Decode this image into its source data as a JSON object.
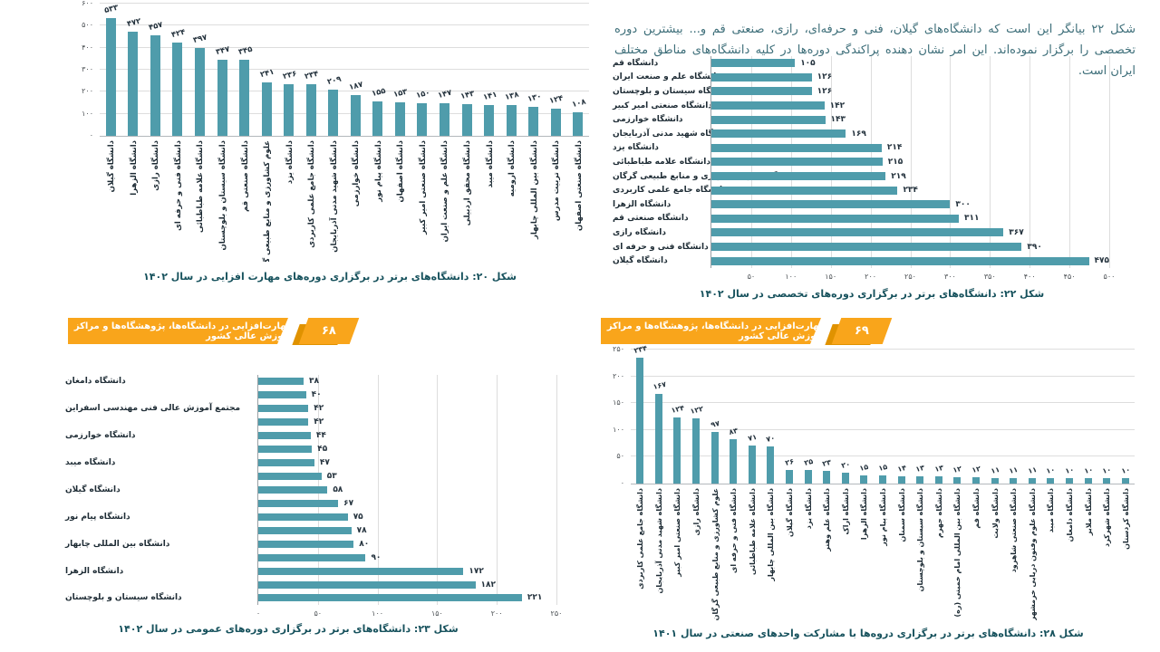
{
  "banner": {
    "title": "مهارت‌افزایی در دانشگاه‌ها، پژوهشگاه‌ها و مراکز آموزش عالی کشور",
    "left_page_number": "۶۸",
    "right_page_number": "۶۹"
  },
  "intro_paragraph": "شکل ۲۲ بیانگر این است که دانشگاه‌های گیلان، فنی و حرفه‌ای، رازی، صنعتی قم و... بیشترین دوره تخصصی را برگزار نموده‌اند. این امر نشان دهنده پراکندگی دوره‌ها در کلیه دانشگاه‌های مناطق مختلف ایران است.",
  "colors": {
    "bar_teal": "#4f9cab",
    "banner_orange": "#f9a51b",
    "banner_shadow": "#e09200",
    "caption_teal": "#17525d",
    "body_text_teal": "#3d6e79"
  },
  "chart_data": [
    {
      "id": "fig20",
      "type": "bar",
      "orientation": "vertical",
      "title": "شکل ۲۰: دانشگاه‌های برتر در برگزاری دوره‌های مهارت افزایی در سال ۱۴۰۲",
      "categories": [
        "دانشگاه گیلان",
        "دانشگاه الزهرا",
        "دانشگاه رازی",
        "دانشگاه فنی و حرفه ای",
        "دانشگاه علامه طباطبائی",
        "دانشگاه سیستان و بلوچستان",
        "دانشگاه صنعتی قم",
        "علوم کشاورزی و منابع طبیعی گرگان",
        "دانشگاه یزد",
        "دانشگاه جامع علمی کاربردی",
        "دانشگاه شهید مدنی آذربایجان",
        "دانشگاه خوارزمی",
        "دانشگاه پیام نور",
        "دانشگاه اصفهان",
        "دانشگاه صنعتی امیر کبیر",
        "دانشگاه علم و صنعت ایران",
        "دانشگاه محقق اردبیلی",
        "دانشگاه میبد",
        "دانشگاه ارومیه",
        "دانشگاه بین المللی چابهار",
        "دانشگاه تربیت مدرس",
        "دانشگاه صنعتی اصفهان"
      ],
      "values": [
        533,
        472,
        457,
        424,
        397,
        347,
        345,
        241,
        236,
        234,
        209,
        187,
        155,
        153,
        150,
        147,
        143,
        141,
        138,
        130,
        124,
        108
      ],
      "ylim": [
        0,
        600
      ],
      "yticks": [
        0,
        100,
        200,
        300,
        400,
        500,
        600
      ],
      "grid": true,
      "value_labels": true
    },
    {
      "id": "fig22",
      "type": "bar",
      "orientation": "horizontal",
      "title": "شکل ۲۲: دانشگاه‌های برتر در برگزاری دوره‌های تخصصی در سال ۱۴۰۲",
      "categories": [
        "دانشگاه قم",
        "دانشگاه علم و صنعت ایران",
        "دانشگاه سیستان و بلوچستان",
        "دانشگاه صنعتی امیر کبیر",
        "دانشگاه خوارزمی",
        "دانشگاه شهید مدنی آذربایجان",
        "دانشگاه یزد",
        "دانشگاه علامه طباطبائی",
        "دانشگاه علوم کشاورزی و منابع طبیعی گرگان",
        "دانشگاه جامع علمی کاربردی",
        "دانشگاه الزهرا",
        "دانشگاه صنعتی قم",
        "دانشگاه رازی",
        "دانشگاه فنی و حرفه ای",
        "دانشگاه گیلان"
      ],
      "values": [
        105,
        126,
        126,
        142,
        143,
        169,
        214,
        215,
        219,
        234,
        300,
        311,
        367,
        390,
        475
      ],
      "xlim": [
        0,
        500
      ],
      "xticks": [
        50,
        100,
        150,
        200,
        250,
        300,
        350,
        400,
        450,
        500
      ],
      "grid": true,
      "value_labels": true
    },
    {
      "id": "fig23",
      "type": "bar",
      "orientation": "horizontal",
      "title": "شکل ۲۳: دانشگاه‌های برتر در برگزاری دوره‌های عمومی در سال ۱۴۰۲",
      "categories": [
        "دانشگاه دامغان",
        "",
        "مجتمع آموزش عالی فنی مهندسی اسفراین",
        "",
        "دانشگاه خوارزمی",
        "",
        "دانشگاه میبد",
        "",
        "دانشگاه گیلان",
        "",
        "دانشگاه پیام نور",
        "",
        "دانشگاه بین المللی چابهار",
        "",
        "دانشگاه الزهرا",
        "",
        "دانشگاه سیستان و بلوچستان"
      ],
      "values": [
        38,
        40,
        42,
        42,
        44,
        45,
        47,
        53,
        58,
        67,
        75,
        78,
        80,
        90,
        172,
        182,
        221
      ],
      "xlim": [
        0,
        250
      ],
      "xticks": [
        0,
        50,
        100,
        150,
        200,
        250
      ],
      "grid": true,
      "value_labels": true
    },
    {
      "id": "fig28",
      "type": "bar",
      "orientation": "vertical",
      "title": "شکل ۲۸: دانشگاه‌های برتر در برگزاری دروه‌ها با مشارکت واحدهای صنعتی در سال ۱۴۰۱",
      "categories": [
        "دانشگاه جامع علمی کاربردی",
        "دانشگاه شهید مدنی آذربایجان",
        "دانشگاه صنعتی امیر کبیر",
        "دانشگاه رازی",
        "علوم کشاورزی و منابع طبیعی گرگان",
        "دانشگاه فنی و حرفه ای",
        "دانشگاه علامه طباطبائی",
        "دانشگاه بین المللی چابهار",
        "دانشگاه گیلان",
        "دانشگاه یزد",
        "دانشگاه علم وهنر",
        "دانشگاه اراک",
        "دانشگاه الزهرا",
        "دانشگاه پیام نور",
        "دانشگاه سمنان",
        "دانشگاه سیستان و بلوچستان",
        "دانشگاه جهرم",
        "دانشگاه بین المللی امام خمینی (ره)",
        "دانشگاه قم",
        "دانشگاه ولایت",
        "دانشگاه صنعتی شاهرود",
        "دانشگاه علوم وفنون دریایی خرمشهر",
        "دانشگاه میبد",
        "دانشگاه دامغان",
        "دانشگاه ملایر",
        "دانشگاه شهرکرد",
        "دانشگاه کردستان"
      ],
      "values": [
        234,
        167,
        124,
        122,
        97,
        83,
        71,
        70,
        26,
        25,
        23,
        20,
        15,
        15,
        14,
        13,
        13,
        12,
        12,
        11,
        11,
        11,
        10,
        10,
        10,
        10,
        10
      ],
      "ylim": [
        0,
        250
      ],
      "yticks": [
        0,
        50,
        100,
        150,
        200,
        250
      ],
      "grid": true,
      "value_labels": true
    }
  ]
}
